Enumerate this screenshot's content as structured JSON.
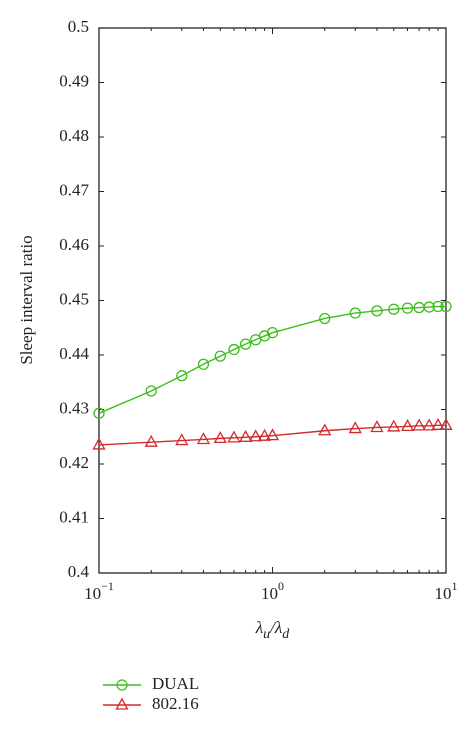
{
  "chart_data": {
    "type": "line",
    "ylabel": "Sleep interval ratio",
    "xlabel_parts": [
      "λ",
      "u",
      "/λ",
      "d"
    ],
    "log_x": true,
    "x": [
      0.1,
      0.2,
      0.3,
      0.4,
      0.5,
      0.6,
      0.7,
      0.8,
      0.9,
      1,
      2,
      3,
      4,
      5,
      6,
      7,
      8,
      9,
      10
    ],
    "series": [
      {
        "name": "DUAL",
        "color": "#3cbf1c",
        "marker": "circle",
        "values": [
          0.4293,
          0.4334,
          0.4362,
          0.4383,
          0.4398,
          0.441,
          0.442,
          0.4428,
          0.4435,
          0.4441,
          0.4467,
          0.4477,
          0.4481,
          0.4484,
          0.4486,
          0.4487,
          0.4488,
          0.4489,
          0.4489
        ]
      },
      {
        "name": "802.16",
        "color": "#d42a2a",
        "marker": "triangle",
        "values": [
          0.4235,
          0.424,
          0.4243,
          0.4245,
          0.4247,
          0.4248,
          0.4249,
          0.425,
          0.4251,
          0.4252,
          0.4261,
          0.4265,
          0.4267,
          0.4268,
          0.4269,
          0.427,
          0.427,
          0.4271,
          0.4271
        ]
      }
    ],
    "xlim": [
      0.1,
      10
    ],
    "xticks": [
      {
        "value": 0.1,
        "label": "10",
        "exponent": "−1"
      },
      {
        "value": 1,
        "label": "10",
        "exponent": "0"
      },
      {
        "value": 10,
        "label": "10",
        "exponent": "1"
      }
    ],
    "ylim": [
      0.4,
      0.5
    ],
    "yticks": [
      0.4,
      0.41,
      0.42,
      0.43,
      0.44,
      0.45,
      0.46,
      0.47,
      0.48,
      0.49,
      0.5
    ],
    "legend": "below"
  }
}
